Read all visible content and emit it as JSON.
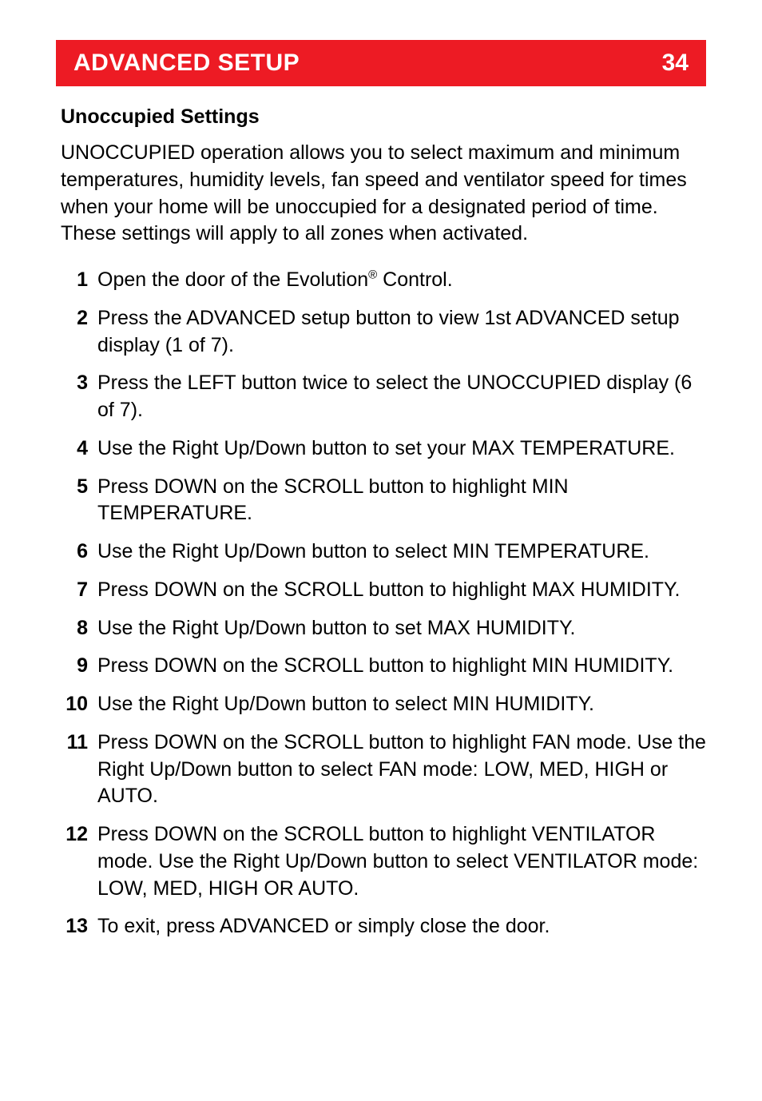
{
  "header": {
    "title": "ADVANCED SETUP",
    "page_number": "34",
    "bg_color": "#ed1b24",
    "fg_color": "#ffffff"
  },
  "section_heading": "Unoccupied Settings",
  "intro": "UNOCCUPIED operation allows you to select maximum and minimum temperatures, humidity levels, fan speed and ventilator speed for times when your home will be unoccupied for a designated period of time. These settings will apply to all zones when activated.",
  "steps": [
    {
      "n": "1",
      "text_pre": "Open the door of the Evolution",
      "sup": "®",
      "text_post": " Control."
    },
    {
      "n": "2",
      "text": "Press the ADVANCED setup button to view 1st ADVANCED setup display (1 of 7)."
    },
    {
      "n": "3",
      "text": "Press the LEFT button twice to select the UNOCCUPIED display (6 of 7)."
    },
    {
      "n": "4",
      "text": "Use the Right Up/Down button to set your MAX TEMPERATURE."
    },
    {
      "n": "5",
      "text": "Press DOWN on the SCROLL button to highlight MIN TEMPERATURE."
    },
    {
      "n": "6",
      "text": "Use the Right Up/Down button to select MIN TEMPERATURE."
    },
    {
      "n": "7",
      "text": "Press DOWN on the SCROLL button to highlight MAX HUMIDITY."
    },
    {
      "n": "8",
      "text": "Use the Right Up/Down button to set MAX HUMIDITY."
    },
    {
      "n": "9",
      "text": "Press DOWN on the SCROLL button to highlight MIN HUMIDITY."
    },
    {
      "n": "10",
      "text": "Use the Right Up/Down button to select MIN HUMIDITY."
    },
    {
      "n": "11",
      "text": "Press DOWN on the SCROLL button to highlight FAN mode. Use the Right Up/Down button to select FAN mode: LOW, MED, HIGH or AUTO."
    },
    {
      "n": "12",
      "text": "Press DOWN on the SCROLL button to highlight VENTILATOR mode. Use the Right Up/Down button to select VENTILATOR mode: LOW, MED, HIGH OR AUTO."
    },
    {
      "n": "13",
      "text": "To exit, press ADVANCED or simply close the door."
    }
  ]
}
